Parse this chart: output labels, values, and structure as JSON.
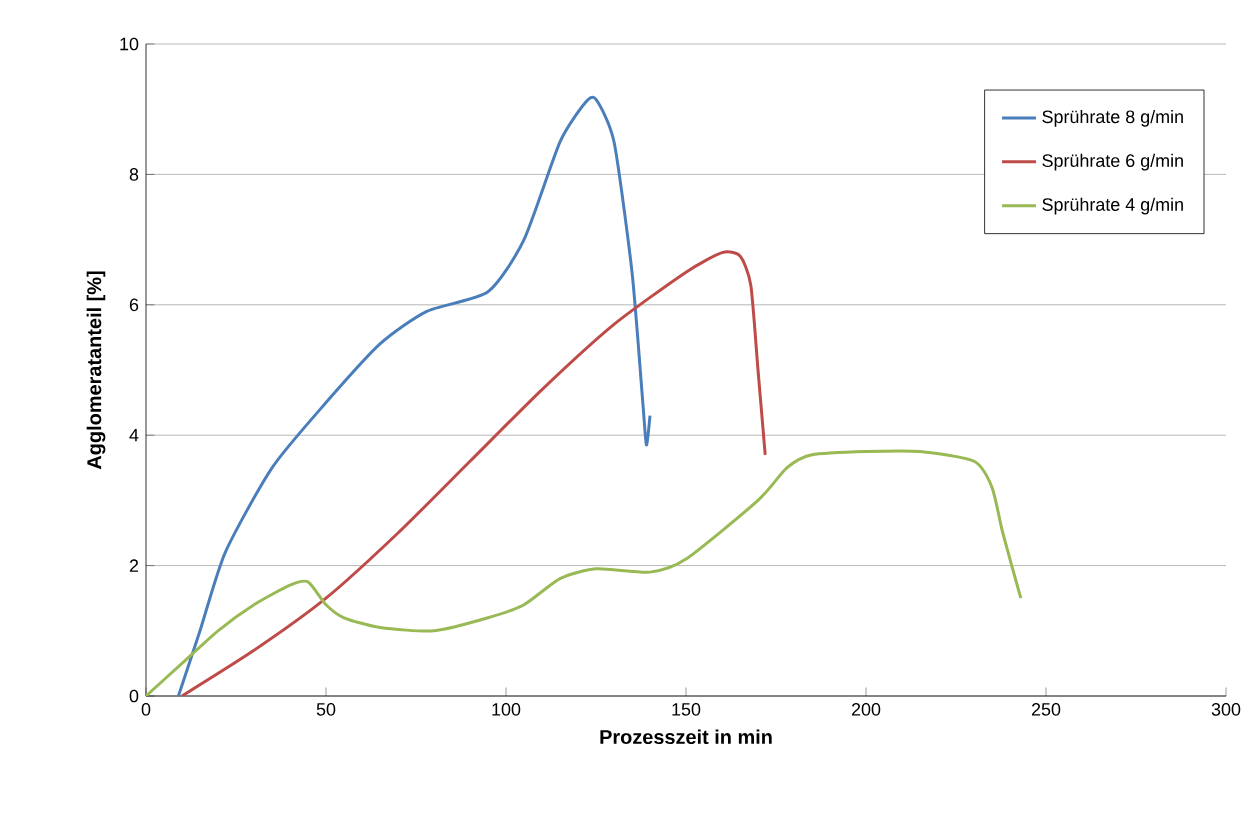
{
  "chart_data": {
    "type": "line",
    "xlabel": "Prozesszeit in min",
    "ylabel": "Agglomeratanteil [%]",
    "xlim": [
      0,
      300
    ],
    "ylim": [
      0,
      10
    ],
    "xticks": [
      0,
      50,
      100,
      150,
      200,
      250,
      300
    ],
    "yticks": [
      0,
      2,
      4,
      6,
      8,
      10
    ],
    "grid": "y",
    "legend": "top right",
    "marker": "none",
    "series": [
      {
        "name": "Sprührate 8 g/min",
        "color": "#4a7ebb",
        "x": [
          9,
          15,
          22,
          35,
          50,
          65,
          78,
          95,
          105,
          115,
          122,
          125,
          130,
          135,
          138,
          139,
          140
        ],
        "values": [
          0,
          1,
          2.2,
          3.5,
          4.5,
          5.4,
          5.9,
          6.2,
          7,
          8.5,
          9.1,
          9.15,
          8.5,
          6.5,
          4.5,
          3.85,
          4.3
        ]
      },
      {
        "name": "Sprührate 6 g/min",
        "color": "#be4b48",
        "x": [
          10,
          30,
          50,
          70,
          90,
          110,
          130,
          150,
          160,
          165,
          168,
          170,
          172
        ],
        "values": [
          0,
          0.7,
          1.5,
          2.5,
          3.6,
          4.7,
          5.7,
          6.5,
          6.8,
          6.75,
          6.3,
          5,
          3.7
        ]
      },
      {
        "name": "Sprührate 4 g/min",
        "color": "#98b954",
        "x": [
          0,
          10,
          20,
          30,
          40,
          45,
          50,
          55,
          65,
          80,
          95,
          105,
          115,
          125,
          140,
          150,
          170,
          178,
          185,
          200,
          215,
          230,
          235,
          238,
          243
        ],
        "values": [
          0,
          0.5,
          1,
          1.4,
          1.7,
          1.75,
          1.4,
          1.2,
          1.05,
          1,
          1.2,
          1.4,
          1.8,
          1.95,
          1.9,
          2.1,
          3,
          3.5,
          3.7,
          3.75,
          3.75,
          3.6,
          3.2,
          2.5,
          1.5
        ]
      }
    ]
  }
}
